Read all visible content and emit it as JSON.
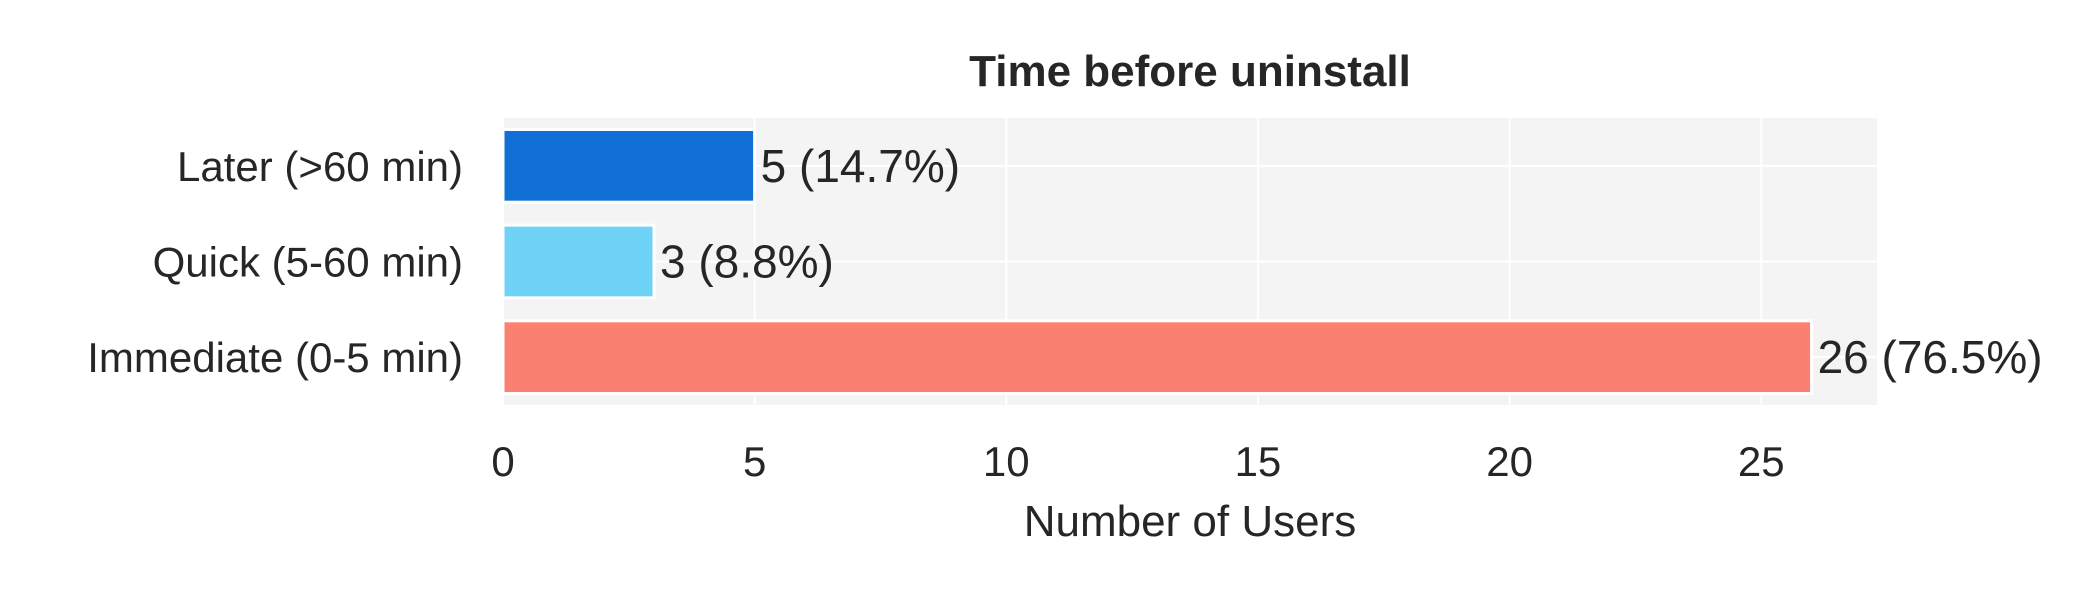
{
  "chart_data": {
    "type": "bar",
    "orientation": "horizontal",
    "title": "Time before uninstall",
    "xlabel": "Number of Users",
    "ylabel": "",
    "categories": [
      "Immediate (0-5 min)",
      "Quick (5-60 min)",
      "Later (>60 min)"
    ],
    "values": [
      26,
      3,
      5
    ],
    "value_labels": [
      "26 (76.5%)",
      "3 (8.8%)",
      "5 (14.7%)"
    ],
    "colors": [
      "#fa8072",
      "#6fd3f7",
      "#1170d6"
    ],
    "xlim": [
      0,
      27.3
    ],
    "xticks": [
      0,
      5,
      10,
      15,
      20,
      25
    ],
    "xtick_labels": [
      "0",
      "5",
      "10",
      "15",
      "20",
      "25"
    ],
    "grid": true,
    "background_color": "#f4f4f4",
    "grid_color": "#ffffff"
  }
}
